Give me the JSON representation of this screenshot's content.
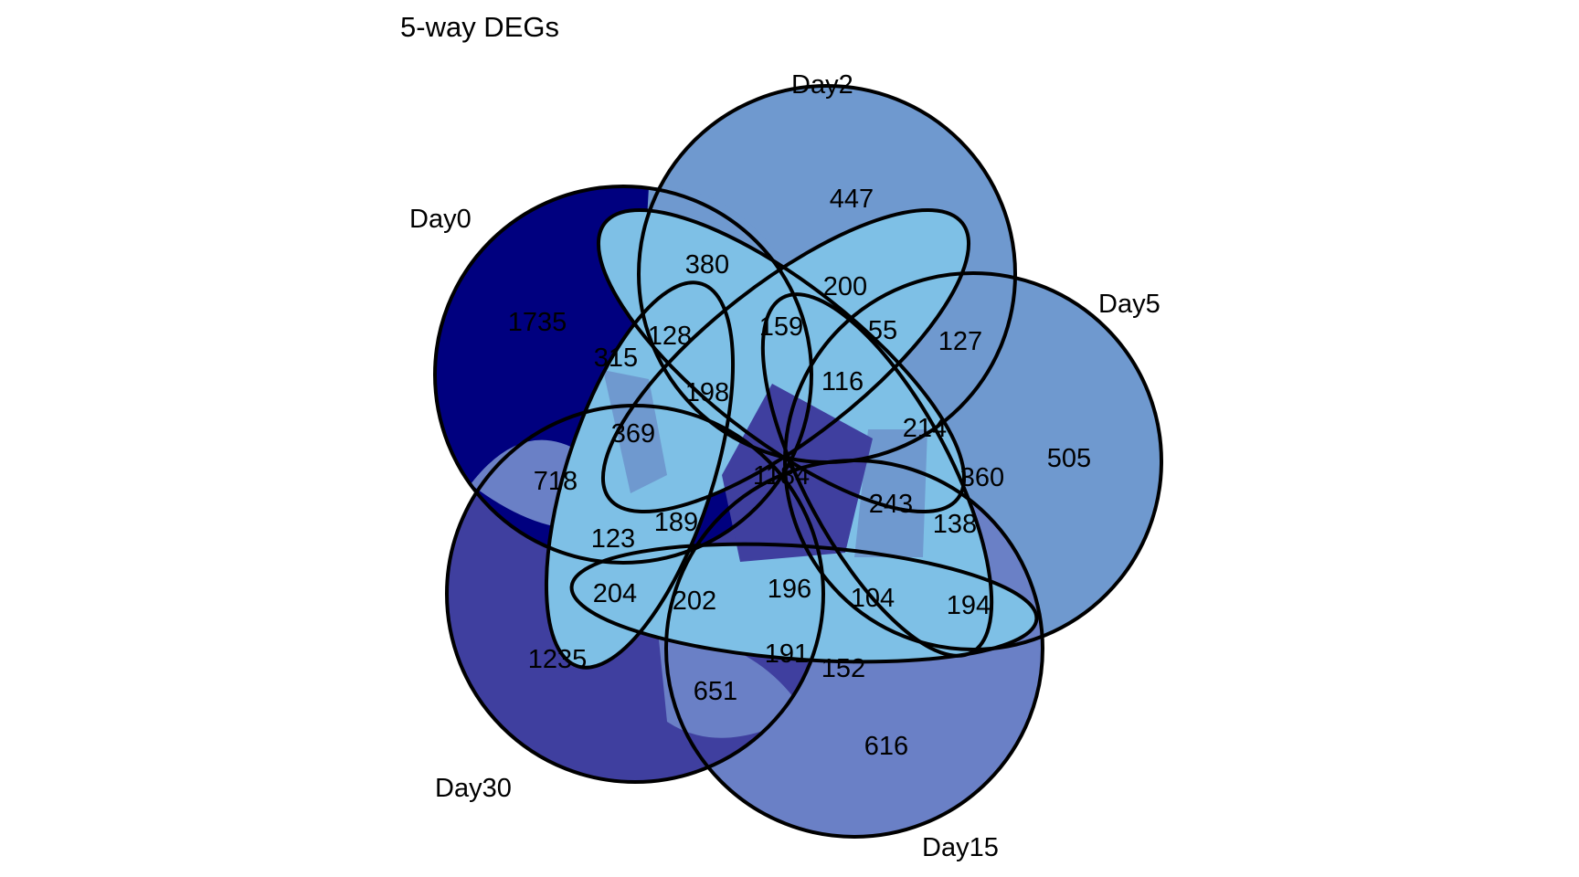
{
  "title": "5-way DEGs",
  "sets": [
    {
      "id": "day0",
      "label": "Day0"
    },
    {
      "id": "day2",
      "label": "Day2"
    },
    {
      "id": "day5",
      "label": "Day5"
    },
    {
      "id": "day15",
      "label": "Day15"
    },
    {
      "id": "day30",
      "label": "Day30"
    }
  ],
  "colors": {
    "navy": "#00007f",
    "indigo": "#3f3f9f",
    "slate_blue": "#6a80c6",
    "mid_blue": "#6f99cf",
    "light_blue": "#7ec0e6",
    "center": "#3f3f9f",
    "outline": "#000000"
  },
  "regions": {
    "day0_only": "1735",
    "day2_only": "447",
    "day5_only": "505",
    "day15_only": "616",
    "day30_only": "1235",
    "r380": "380",
    "r200": "200",
    "r55": "55",
    "r127": "127",
    "r128": "128",
    "r159": "159",
    "r315": "315",
    "r198": "198",
    "r116": "116",
    "r369": "369",
    "r214": "214",
    "r718": "718",
    "r1184": "1184",
    "r360": "360",
    "r189": "189",
    "r243": "243",
    "r138": "138",
    "r123": "123",
    "r204": "204",
    "r202": "202",
    "r196": "196",
    "r104": "104",
    "r194": "194",
    "r191": "191",
    "r152": "152",
    "r651": "651"
  }
}
